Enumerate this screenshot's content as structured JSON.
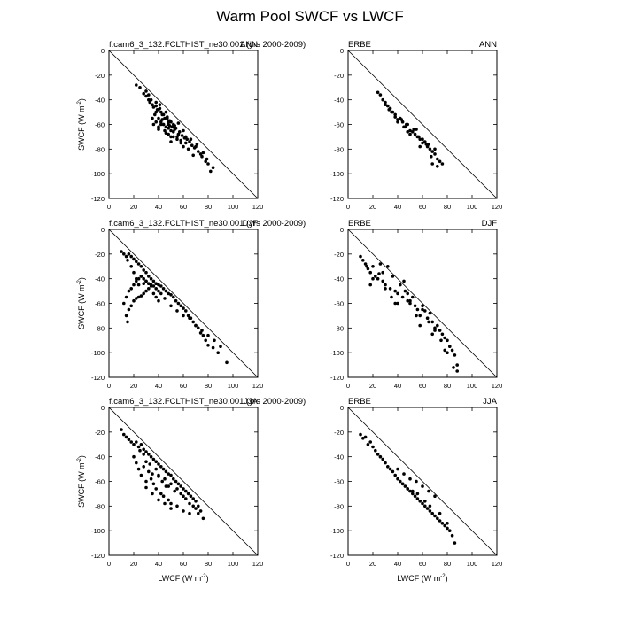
{
  "title": "Warm Pool SWCF vs LWCF",
  "chart_data": [
    {
      "type": "scatter",
      "left_label": "f.cam6_3_132.FCLTHIST_ne30.001 (yrs 2000-2009)",
      "right_label": "ANN",
      "ylabel": "SWCF (W m",
      "ylabel_sup": "-2",
      "ylabel_tail": ")",
      "xlabel": "",
      "xlabel_sup": "",
      "xlabel_tail": "",
      "xlim": [
        0,
        120
      ],
      "ylim": [
        -120,
        0
      ],
      "xticks": [
        0,
        20,
        40,
        60,
        80,
        100,
        120
      ],
      "yticks": [
        0,
        -20,
        -40,
        -60,
        -80,
        -100,
        -120
      ],
      "xtick_labels": [
        "0",
        "20",
        "40",
        "60",
        "80",
        "100",
        "120"
      ],
      "ytick_labels": [
        "0",
        "-20",
        "-40",
        "-60",
        "-80",
        "-100",
        "-120"
      ],
      "reference_line": "1:1 (SWCF = -LWCF)",
      "x": [
        22,
        25,
        28,
        30,
        32,
        33,
        35,
        36,
        38,
        38,
        40,
        40,
        42,
        42,
        44,
        44,
        45,
        46,
        47,
        48,
        48,
        50,
        50,
        52,
        52,
        54,
        55,
        56,
        58,
        60,
        60,
        62,
        64,
        66,
        68,
        70,
        72,
        75,
        78,
        80,
        82,
        35,
        38,
        40,
        42,
        45,
        48,
        50,
        52,
        36,
        40,
        44,
        46,
        48,
        50,
        55,
        58,
        62,
        30,
        32,
        34,
        38,
        41,
        43,
        47,
        49,
        51,
        53,
        57,
        59,
        63,
        65,
        67,
        69,
        71,
        74,
        76,
        79,
        84,
        37,
        39,
        41,
        43,
        46,
        49,
        53,
        56,
        61
      ],
      "y": [
        -28,
        -30,
        -35,
        -37,
        -40,
        -42,
        -44,
        -46,
        -45,
        -50,
        -48,
        -55,
        -50,
        -58,
        -52,
        -60,
        -55,
        -62,
        -55,
        -60,
        -68,
        -58,
        -65,
        -60,
        -70,
        -63,
        -72,
        -68,
        -75,
        -65,
        -78,
        -70,
        -80,
        -72,
        -85,
        -78,
        -82,
        -86,
        -90,
        -92,
        -98,
        -55,
        -58,
        -62,
        -60,
        -65,
        -63,
        -70,
        -66,
        -60,
        -64,
        -60,
        -67,
        -58,
        -74,
        -70,
        -73,
        -75,
        -33,
        -36,
        -40,
        -42,
        -47,
        -52,
        -54,
        -57,
        -62,
        -61,
        -66,
        -69,
        -72,
        -74,
        -77,
        -79,
        -76,
        -84,
        -83,
        -88,
        -95,
        -52,
        -48,
        -44,
        -56,
        -50,
        -61,
        -64,
        -59,
        -71
      ]
    },
    {
      "type": "scatter",
      "left_label": "ERBE",
      "right_label": "ANN",
      "ylabel": "",
      "ylabel_sup": "",
      "ylabel_tail": "",
      "xlabel": "",
      "xlabel_sup": "",
      "xlabel_tail": "",
      "xlim": [
        0,
        120
      ],
      "ylim": [
        -120,
        0
      ],
      "xticks": [
        0,
        20,
        40,
        60,
        80,
        100,
        120
      ],
      "yticks": [
        0,
        -20,
        -40,
        -60,
        -80,
        -100,
        -120
      ],
      "xtick_labels": [
        "0",
        "20",
        "40",
        "60",
        "80",
        "100",
        "120"
      ],
      "ytick_labels": [
        "0",
        "-20",
        "-40",
        "-60",
        "-80",
        "-100",
        "-120"
      ],
      "reference_line": "1:1 (SWCF = -LWCF)",
      "x": [
        24,
        26,
        28,
        30,
        32,
        34,
        36,
        38,
        40,
        42,
        44,
        46,
        48,
        50,
        52,
        54,
        56,
        58,
        60,
        62,
        64,
        66,
        68,
        70,
        72,
        74,
        76,
        30,
        35,
        40,
        45,
        50,
        55,
        60,
        65,
        70,
        38,
        43,
        47,
        53,
        57,
        63,
        67,
        33,
        48,
        58,
        68,
        72
      ],
      "y": [
        -34,
        -36,
        -40,
        -42,
        -45,
        -47,
        -50,
        -52,
        -56,
        -55,
        -58,
        -62,
        -60,
        -65,
        -66,
        -68,
        -70,
        -72,
        -75,
        -74,
        -78,
        -80,
        -82,
        -84,
        -88,
        -90,
        -92,
        -44,
        -50,
        -58,
        -62,
        -68,
        -64,
        -72,
        -76,
        -80,
        -54,
        -56,
        -60,
        -64,
        -70,
        -76,
        -86,
        -48,
        -66,
        -78,
        -92,
        -94
      ]
    },
    {
      "type": "scatter",
      "left_label": "f.cam6_3_132.FCLTHIST_ne30.001 (yrs 2000-2009)",
      "right_label": "DJF",
      "ylabel": "SWCF (W m",
      "ylabel_sup": "-2",
      "ylabel_tail": ")",
      "xlabel": "",
      "xlabel_sup": "",
      "xlabel_tail": "",
      "xlim": [
        0,
        120
      ],
      "ylim": [
        -120,
        0
      ],
      "xticks": [
        0,
        20,
        40,
        60,
        80,
        100,
        120
      ],
      "yticks": [
        0,
        -20,
        -40,
        -60,
        -80,
        -100,
        -120
      ],
      "xtick_labels": [
        "0",
        "20",
        "40",
        "60",
        "80",
        "100",
        "120"
      ],
      "ytick_labels": [
        "0",
        "-20",
        "-40",
        "-60",
        "-80",
        "-100",
        "-120"
      ],
      "reference_line": "1:1 (SWCF = -LWCF)",
      "x": [
        10,
        12,
        14,
        15,
        16,
        18,
        20,
        22,
        24,
        26,
        28,
        30,
        32,
        34,
        36,
        38,
        40,
        42,
        44,
        46,
        48,
        50,
        52,
        54,
        56,
        58,
        60,
        62,
        64,
        66,
        68,
        70,
        72,
        74,
        76,
        78,
        80,
        84,
        88,
        95,
        12,
        14,
        16,
        18,
        20,
        22,
        24,
        26,
        28,
        30,
        32,
        34,
        36,
        38,
        40,
        42,
        14,
        15,
        16,
        18,
        20,
        22,
        24,
        26,
        28,
        30,
        18,
        20,
        22,
        24,
        26,
        28,
        30,
        32,
        34,
        36,
        38,
        40,
        45,
        50,
        55,
        60,
        65,
        70,
        75,
        80,
        85,
        90
      ],
      "y": [
        -18,
        -20,
        -22,
        -25,
        -20,
        -22,
        -24,
        -26,
        -28,
        -30,
        -33,
        -35,
        -38,
        -40,
        -42,
        -44,
        -45,
        -46,
        -48,
        -50,
        -52,
        -53,
        -55,
        -58,
        -60,
        -62,
        -64,
        -66,
        -70,
        -72,
        -75,
        -78,
        -80,
        -84,
        -86,
        -90,
        -94,
        -96,
        -100,
        -108,
        -60,
        -55,
        -50,
        -48,
        -45,
        -42,
        -40,
        -38,
        -40,
        -42,
        -44,
        -45,
        -46,
        -48,
        -50,
        -52,
        -70,
        -75,
        -65,
        -62,
        -58,
        -56,
        -55,
        -54,
        -52,
        -50,
        -30,
        -35,
        -40,
        -45,
        -38,
        -44,
        -42,
        -48,
        -46,
        -52,
        -55,
        -58,
        -56,
        -62,
        -66,
        -70,
        -72,
        -78,
        -82,
        -86,
        -90,
        -95
      ]
    },
    {
      "type": "scatter",
      "left_label": "ERBE",
      "right_label": "DJF",
      "ylabel": "",
      "ylabel_sup": "",
      "ylabel_tail": "",
      "xlabel": "",
      "xlabel_sup": "",
      "xlabel_tail": "",
      "xlim": [
        0,
        120
      ],
      "ylim": [
        -120,
        0
      ],
      "xticks": [
        0,
        20,
        40,
        60,
        80,
        100,
        120
      ],
      "yticks": [
        0,
        -20,
        -40,
        -60,
        -80,
        -100,
        -120
      ],
      "xtick_labels": [
        "0",
        "20",
        "40",
        "60",
        "80",
        "100",
        "120"
      ],
      "ytick_labels": [
        "0",
        "-20",
        "-40",
        "-60",
        "-80",
        "-100",
        "-120"
      ],
      "reference_line": "1:1 (SWCF = -LWCF)",
      "x": [
        10,
        12,
        14,
        16,
        18,
        20,
        22,
        24,
        26,
        28,
        30,
        32,
        34,
        36,
        38,
        40,
        42,
        44,
        46,
        48,
        50,
        52,
        54,
        56,
        58,
        60,
        62,
        64,
        66,
        68,
        70,
        72,
        74,
        76,
        78,
        80,
        82,
        84,
        86,
        88,
        15,
        20,
        25,
        30,
        35,
        40,
        45,
        50,
        55,
        60,
        65,
        70,
        75,
        80,
        85,
        18,
        28,
        38,
        48,
        58,
        68,
        78,
        88
      ],
      "y": [
        -22,
        -25,
        -28,
        -32,
        -35,
        -30,
        -38,
        -40,
        -28,
        -42,
        -45,
        -30,
        -48,
        -38,
        -50,
        -52,
        -45,
        -55,
        -50,
        -58,
        -60,
        -55,
        -62,
        -65,
        -70,
        -62,
        -66,
        -72,
        -68,
        -75,
        -80,
        -78,
        -82,
        -85,
        -88,
        -90,
        -95,
        -98,
        -102,
        -110,
        -30,
        -40,
        -36,
        -48,
        -55,
        -60,
        -42,
        -58,
        -70,
        -65,
        -75,
        -82,
        -90,
        -100,
        -112,
        -45,
        -35,
        -60,
        -52,
        -78,
        -85,
        -98,
        -115
      ]
    },
    {
      "type": "scatter",
      "left_label": "f.cam6_3_132.FCLTHIST_ne30.001 (yrs 2000-2009)",
      "right_label": "JJA",
      "ylabel": "SWCF (W m",
      "ylabel_sup": "-2",
      "ylabel_tail": ")",
      "xlabel": "LWCF (W m",
      "xlabel_sup": "-2",
      "xlabel_tail": ")",
      "xlim": [
        0,
        120
      ],
      "ylim": [
        -120,
        0
      ],
      "xticks": [
        0,
        20,
        40,
        60,
        80,
        100,
        120
      ],
      "yticks": [
        0,
        -20,
        -40,
        -60,
        -80,
        -100,
        -120
      ],
      "xtick_labels": [
        "0",
        "20",
        "40",
        "60",
        "80",
        "100",
        "120"
      ],
      "ytick_labels": [
        "0",
        "-20",
        "-40",
        "-60",
        "-80",
        "-100",
        "-120"
      ],
      "reference_line": "1:1 (SWCF = -LWCF)",
      "x": [
        10,
        12,
        14,
        16,
        18,
        20,
        22,
        24,
        26,
        28,
        30,
        32,
        34,
        36,
        38,
        40,
        42,
        44,
        46,
        48,
        50,
        52,
        54,
        56,
        58,
        60,
        62,
        64,
        66,
        68,
        70,
        72,
        74,
        76,
        20,
        22,
        24,
        26,
        28,
        30,
        32,
        34,
        36,
        38,
        40,
        42,
        44,
        46,
        48,
        50,
        25,
        28,
        30,
        33,
        35,
        38,
        40,
        43,
        45,
        48,
        50,
        53,
        55,
        58,
        60,
        62,
        65,
        68,
        70,
        72,
        30,
        35,
        40,
        45,
        50,
        55,
        60,
        65
      ],
      "y": [
        -18,
        -22,
        -24,
        -26,
        -28,
        -30,
        -28,
        -32,
        -30,
        -34,
        -36,
        -38,
        -40,
        -42,
        -44,
        -46,
        -48,
        -50,
        -52,
        -54,
        -55,
        -58,
        -60,
        -62,
        -64,
        -66,
        -68,
        -70,
        -72,
        -74,
        -76,
        -80,
        -84,
        -90,
        -40,
        -45,
        -50,
        -55,
        -48,
        -60,
        -52,
        -58,
        -62,
        -66,
        -55,
        -70,
        -72,
        -64,
        -75,
        -78,
        -35,
        -38,
        -44,
        -46,
        -54,
        -50,
        -56,
        -60,
        -58,
        -64,
        -62,
        -68,
        -66,
        -70,
        -72,
        -74,
        -78,
        -80,
        -82,
        -86,
        -65,
        -70,
        -75,
        -78,
        -82,
        -80,
        -84,
        -86
      ]
    },
    {
      "type": "scatter",
      "left_label": "ERBE",
      "right_label": "JJA",
      "ylabel": "",
      "ylabel_sup": "",
      "ylabel_tail": "",
      "xlabel": "LWCF (W m",
      "xlabel_sup": "-2",
      "xlabel_tail": ")",
      "xlim": [
        0,
        120
      ],
      "ylim": [
        -120,
        0
      ],
      "xticks": [
        0,
        20,
        40,
        60,
        80,
        100,
        120
      ],
      "yticks": [
        0,
        -20,
        -40,
        -60,
        -80,
        -100,
        -120
      ],
      "xtick_labels": [
        "0",
        "20",
        "40",
        "60",
        "80",
        "100",
        "120"
      ],
      "ytick_labels": [
        "0",
        "-20",
        "-40",
        "-60",
        "-80",
        "-100",
        "-120"
      ],
      "reference_line": "1:1 (SWCF = -LWCF)",
      "x": [
        10,
        12,
        14,
        16,
        18,
        20,
        22,
        24,
        26,
        28,
        30,
        32,
        34,
        36,
        38,
        40,
        42,
        44,
        46,
        48,
        50,
        52,
        54,
        56,
        58,
        60,
        62,
        64,
        66,
        68,
        70,
        72,
        74,
        76,
        78,
        80,
        82,
        84,
        86,
        40,
        45,
        50,
        55,
        60,
        65,
        70,
        44,
        48,
        52,
        56,
        62,
        66,
        74,
        80
      ],
      "y": [
        -22,
        -25,
        -24,
        -30,
        -28,
        -32,
        -35,
        -38,
        -40,
        -42,
        -45,
        -48,
        -50,
        -52,
        -55,
        -58,
        -60,
        -62,
        -64,
        -66,
        -68,
        -70,
        -72,
        -74,
        -76,
        -78,
        -80,
        -82,
        -84,
        -86,
        -88,
        -90,
        -92,
        -94,
        -96,
        -98,
        -100,
        -104,
        -110,
        -50,
        -54,
        -58,
        -60,
        -64,
        -68,
        -72,
        -62,
        -66,
        -68,
        -70,
        -76,
        -80,
        -86,
        -94
      ]
    }
  ]
}
